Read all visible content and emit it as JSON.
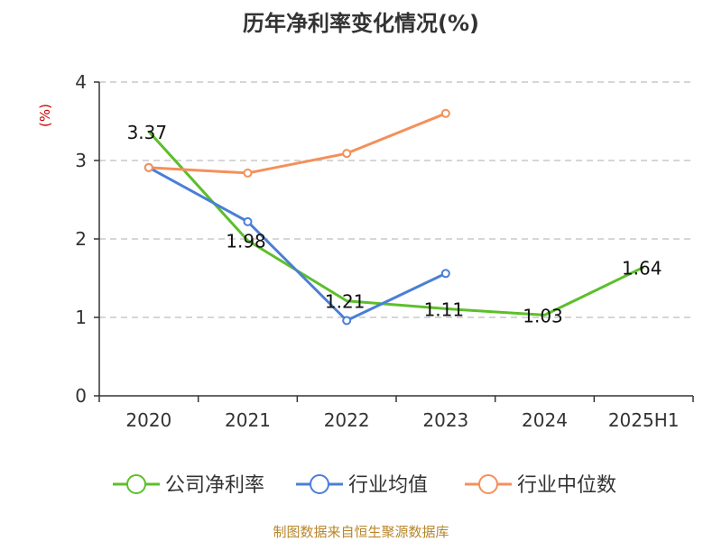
{
  "chart_data": {
    "type": "line",
    "title": "历年净利率变化情况(%)",
    "ylabel": "(%)",
    "categories": [
      "2020",
      "2021",
      "2022",
      "2023",
      "2024",
      "2025H1"
    ],
    "ylim": [
      0,
      4
    ],
    "yticks": [
      "0",
      "1",
      "2",
      "3",
      "4"
    ],
    "grid": true,
    "legend_position": "bottom",
    "series": [
      {
        "name": "公司净利率",
        "color": "#5cbf2a",
        "values": [
          3.37,
          1.98,
          1.21,
          1.11,
          1.03,
          1.64
        ],
        "labels": [
          "3.37",
          "1.98",
          "1.21",
          "1.11",
          "1.03",
          "1.64"
        ]
      },
      {
        "name": "行业均值",
        "color": "#4a7fd6",
        "values": [
          2.91,
          2.22,
          0.96,
          1.56,
          null,
          null
        ]
      },
      {
        "name": "行业中位数",
        "color": "#f4905a",
        "values": [
          2.91,
          2.84,
          3.09,
          3.6,
          null,
          null
        ]
      }
    ]
  },
  "source": "制图数据来自恒生聚源数据库"
}
